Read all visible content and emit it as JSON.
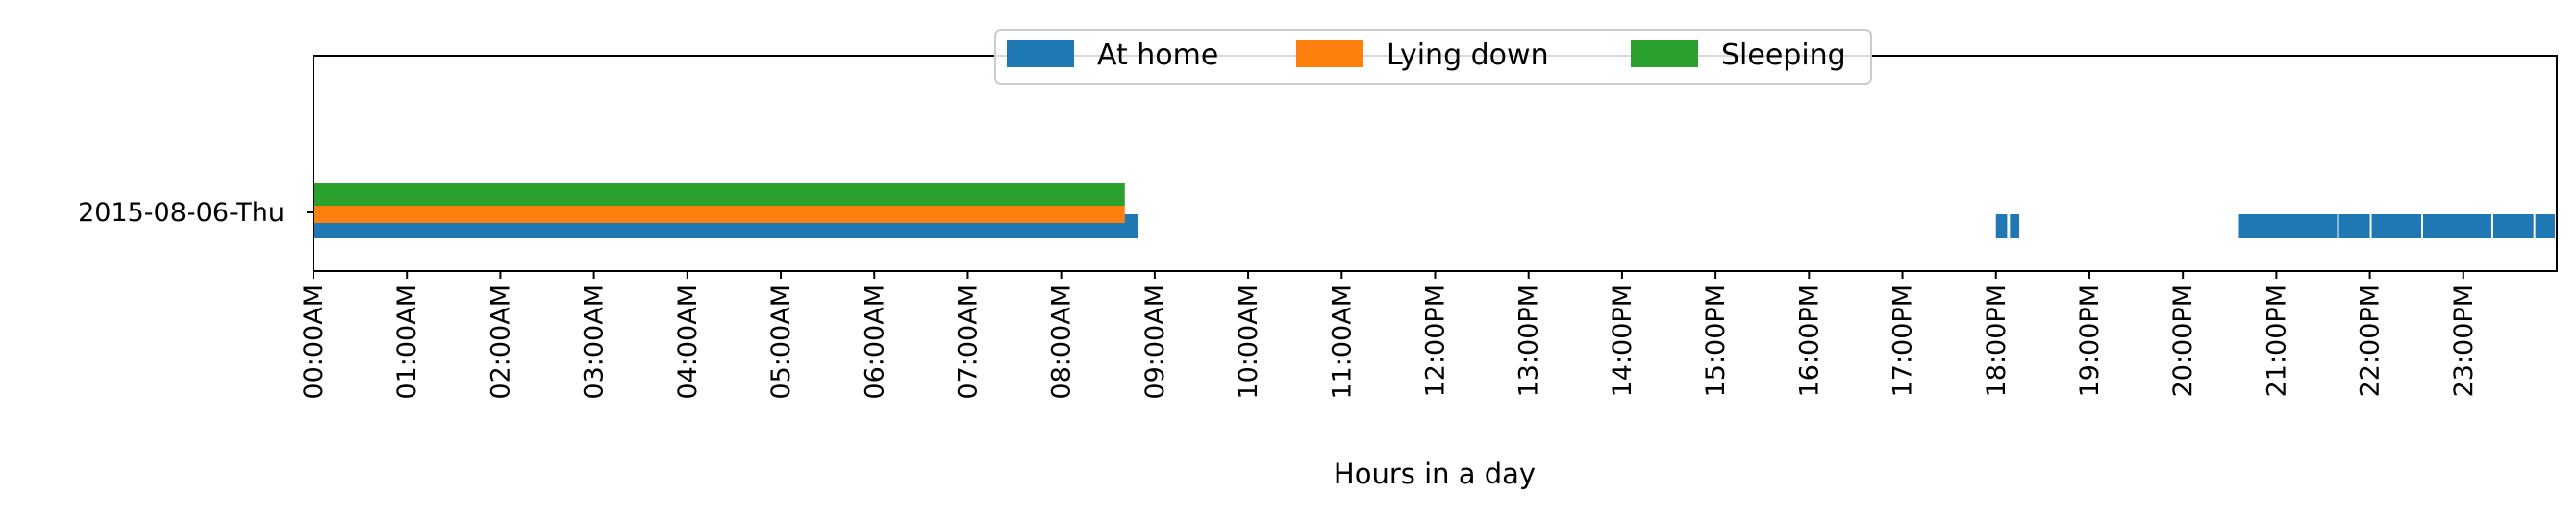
{
  "chart_data": {
    "type": "bar",
    "orientation": "horizontal-timeline",
    "title": "",
    "xlabel": "Hours in a day",
    "ylabel": "",
    "xlim": [
      0,
      24
    ],
    "x_ticks": [
      "00:00AM",
      "01:00AM",
      "02:00AM",
      "03:00AM",
      "04:00AM",
      "05:00AM",
      "06:00AM",
      "07:00AM",
      "08:00AM",
      "09:00AM",
      "10:00AM",
      "11:00AM",
      "12:00PM",
      "13:00PM",
      "14:00PM",
      "15:00PM",
      "16:00PM",
      "17:00PM",
      "18:00PM",
      "19:00PM",
      "20:00PM",
      "21:00PM",
      "22:00PM",
      "23:00PM"
    ],
    "categories": [
      "2015-08-06-Thu"
    ],
    "grid": false,
    "legend_position": "top-center",
    "series": [
      {
        "name": "At home",
        "color": "#1f77b4",
        "intervals": [
          [
            0.0,
            8.82
          ],
          [
            18.0,
            18.12
          ],
          [
            18.15,
            18.25
          ],
          [
            20.6,
            21.65
          ],
          [
            21.67,
            22.0
          ],
          [
            22.02,
            22.55
          ],
          [
            22.57,
            23.3
          ],
          [
            23.32,
            23.75
          ],
          [
            23.77,
            23.98
          ]
        ]
      },
      {
        "name": "Lying down",
        "color": "#ff7f0e",
        "intervals": [
          [
            0.0,
            8.68
          ]
        ]
      },
      {
        "name": "Sleeping",
        "color": "#2ca02c",
        "intervals": [
          [
            0.0,
            8.68
          ]
        ]
      }
    ]
  }
}
